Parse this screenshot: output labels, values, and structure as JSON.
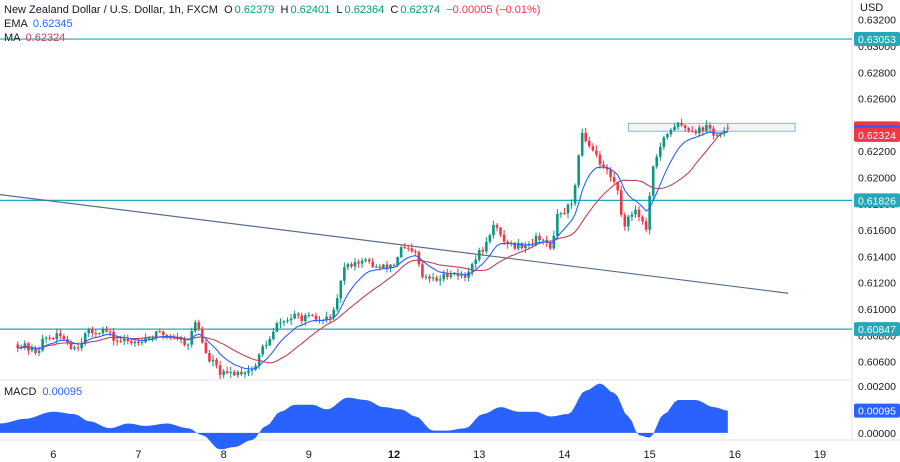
{
  "legend": {
    "title": "New Zealand Dollar / U.S. Dollar, 1h, FXCM",
    "o_label": "O",
    "o_value": "0.62379",
    "h_label": "H",
    "h_value": "0.62401",
    "l_label": "L",
    "l_value": "0.62364",
    "c_label": "C",
    "c_value": "0.62374",
    "change": "−0.00005 (−0.01%)",
    "ema_label": "EMA",
    "ema_value": "0.62345",
    "ma_label": "MA",
    "ma_value": "0.62324"
  },
  "macd": {
    "label": "MACD",
    "value": "0.00095"
  },
  "colors": {
    "up": "#089981",
    "down": "#f23645",
    "ema": "#2962ff",
    "ma": "#c2415c",
    "hline": "#22a8b8",
    "trendline": "#5b6f8c",
    "macd_fill": "#2962ff",
    "resistance_box": "#8fb0d8"
  },
  "chart_data": [
    {
      "type": "candlestick",
      "title": "New Zealand Dollar / U.S. Dollar, 1h, FXCM",
      "y_unit": "USD",
      "ylim": [
        0.6046,
        0.6335
      ],
      "y_ticks": [
        "0.63200",
        "0.63000",
        "0.62800",
        "0.62600",
        "0.62400",
        "0.62200",
        "0.62000",
        "0.61800",
        "0.61600",
        "0.61400",
        "0.61200",
        "0.61000",
        "0.60800",
        "0.60600"
      ],
      "x_ticks": [
        {
          "label": "6",
          "t": 10
        },
        {
          "label": "7",
          "t": 34
        },
        {
          "label": "8",
          "t": 58
        },
        {
          "label": "9",
          "t": 82
        },
        {
          "label": "12",
          "t": 106
        },
        {
          "label": "13",
          "t": 130
        },
        {
          "label": "14",
          "t": 154
        },
        {
          "label": "15",
          "t": 178
        },
        {
          "label": "16",
          "t": 202
        },
        {
          "label": "19",
          "t": 226
        }
      ],
      "x_range": [
        -5,
        235
      ],
      "price_labels": [
        {
          "text": "0.63053",
          "value": 0.63053,
          "color": "#22a8b8"
        },
        {
          "text": "0.62374",
          "value": 0.62374,
          "color": "#f23645"
        },
        {
          "text": "0.62345",
          "value": 0.62345,
          "color": "#2962ff"
        },
        {
          "text": "0.62324",
          "value": 0.62324,
          "color": "#f23645"
        },
        {
          "text": "0.61826",
          "value": 0.61826,
          "color": "#22a8b8"
        },
        {
          "text": "0.60847",
          "value": 0.60847,
          "color": "#22a8b8"
        }
      ],
      "horizontal_lines": [
        0.63053,
        0.61826,
        0.60847
      ],
      "trendline": {
        "t1": -5,
        "y1": 0.6187,
        "t2": 217,
        "y2": 0.6112
      },
      "resistance_zone": {
        "t1": 172,
        "t2": 219,
        "y_top": 0.62412,
        "y_bottom": 0.62352
      },
      "anchors": [
        {
          "t": 0,
          "y": 0.6073
        },
        {
          "t": 5,
          "y": 0.6068
        },
        {
          "t": 8,
          "y": 0.6078
        },
        {
          "t": 12,
          "y": 0.6079
        },
        {
          "t": 16,
          "y": 0.6071
        },
        {
          "t": 20,
          "y": 0.6082
        },
        {
          "t": 24,
          "y": 0.6084
        },
        {
          "t": 28,
          "y": 0.6076
        },
        {
          "t": 32,
          "y": 0.6075
        },
        {
          "t": 36,
          "y": 0.6078
        },
        {
          "t": 40,
          "y": 0.6081
        },
        {
          "t": 44,
          "y": 0.6079
        },
        {
          "t": 48,
          "y": 0.6074
        },
        {
          "t": 50,
          "y": 0.609
        },
        {
          "t": 54,
          "y": 0.6061
        },
        {
          "t": 58,
          "y": 0.605
        },
        {
          "t": 62,
          "y": 0.6052
        },
        {
          "t": 66,
          "y": 0.6054
        },
        {
          "t": 70,
          "y": 0.6074
        },
        {
          "t": 74,
          "y": 0.609
        },
        {
          "t": 78,
          "y": 0.6094
        },
        {
          "t": 82,
          "y": 0.6093
        },
        {
          "t": 86,
          "y": 0.6091
        },
        {
          "t": 89,
          "y": 0.6097
        },
        {
          "t": 92,
          "y": 0.6131
        },
        {
          "t": 95,
          "y": 0.6136
        },
        {
          "t": 98,
          "y": 0.6136
        },
        {
          "t": 102,
          "y": 0.6131
        },
        {
          "t": 106,
          "y": 0.6134
        },
        {
          "t": 108,
          "y": 0.6146
        },
        {
          "t": 112,
          "y": 0.6142
        },
        {
          "t": 114,
          "y": 0.6124
        },
        {
          "t": 118,
          "y": 0.6122
        },
        {
          "t": 122,
          "y": 0.6128
        },
        {
          "t": 126,
          "y": 0.6124
        },
        {
          "t": 128,
          "y": 0.6136
        },
        {
          "t": 131,
          "y": 0.6145
        },
        {
          "t": 134,
          "y": 0.6163
        },
        {
          "t": 137,
          "y": 0.6152
        },
        {
          "t": 140,
          "y": 0.6148
        },
        {
          "t": 144,
          "y": 0.615
        },
        {
          "t": 147,
          "y": 0.6155
        },
        {
          "t": 150,
          "y": 0.6146
        },
        {
          "t": 152,
          "y": 0.617
        },
        {
          "t": 156,
          "y": 0.6178
        },
        {
          "t": 159,
          "y": 0.6232
        },
        {
          "t": 162,
          "y": 0.6222
        },
        {
          "t": 165,
          "y": 0.6208
        },
        {
          "t": 168,
          "y": 0.6197
        },
        {
          "t": 171,
          "y": 0.6165
        },
        {
          "t": 174,
          "y": 0.6176
        },
        {
          "t": 177,
          "y": 0.6162
        },
        {
          "t": 179,
          "y": 0.621
        },
        {
          "t": 182,
          "y": 0.6228
        },
        {
          "t": 185,
          "y": 0.624
        },
        {
          "t": 188,
          "y": 0.6238
        },
        {
          "t": 191,
          "y": 0.6236
        },
        {
          "t": 194,
          "y": 0.6238
        },
        {
          "t": 197,
          "y": 0.6232
        },
        {
          "t": 200,
          "y": 0.6234
        }
      ],
      "macd": {
        "ylim": [
          -0.0003,
          0.00225
        ],
        "y_ticks": [
          "0.00200",
          "0.00100",
          "0.00000"
        ],
        "anchors": [
          {
            "t": -5,
            "y": 0.0004
          },
          {
            "t": 2,
            "y": 0.0006
          },
          {
            "t": 10,
            "y": 0.0009
          },
          {
            "t": 16,
            "y": 0.0008
          },
          {
            "t": 20,
            "y": 0.0005
          },
          {
            "t": 26,
            "y": 0.0002
          },
          {
            "t": 31,
            "y": 0.0004
          },
          {
            "t": 36,
            "y": 0.0003
          },
          {
            "t": 42,
            "y": 0.0004
          },
          {
            "t": 48,
            "y": 0.0002
          },
          {
            "t": 52,
            "y": -0.0001
          },
          {
            "t": 57,
            "y": -0.0007
          },
          {
            "t": 61,
            "y": -0.0006
          },
          {
            "t": 66,
            "y": -0.0003
          },
          {
            "t": 70,
            "y": 0.0003
          },
          {
            "t": 74,
            "y": 0.0009
          },
          {
            "t": 78,
            "y": 0.0012
          },
          {
            "t": 83,
            "y": 0.0012
          },
          {
            "t": 87,
            "y": 0.001
          },
          {
            "t": 93,
            "y": 0.0015
          },
          {
            "t": 98,
            "y": 0.0014
          },
          {
            "t": 103,
            "y": 0.0011
          },
          {
            "t": 108,
            "y": 0.001
          },
          {
            "t": 112,
            "y": 0.0007
          },
          {
            "t": 117,
            "y": 0.0001
          },
          {
            "t": 121,
            "y": 0.0001
          },
          {
            "t": 126,
            "y": 0.0002
          },
          {
            "t": 131,
            "y": 0.0008
          },
          {
            "t": 136,
            "y": 0.0011
          },
          {
            "t": 141,
            "y": 0.0009
          },
          {
            "t": 146,
            "y": 0.0009
          },
          {
            "t": 150,
            "y": 0.0007
          },
          {
            "t": 155,
            "y": 0.0008
          },
          {
            "t": 160,
            "y": 0.0018
          },
          {
            "t": 164,
            "y": 0.0021
          },
          {
            "t": 168,
            "y": 0.0017
          },
          {
            "t": 172,
            "y": 0.0007
          },
          {
            "t": 175,
            "y": -0.0001
          },
          {
            "t": 178,
            "y": -0.0002
          },
          {
            "t": 182,
            "y": 0.0008
          },
          {
            "t": 186,
            "y": 0.0014
          },
          {
            "t": 191,
            "y": 0.0014
          },
          {
            "t": 196,
            "y": 0.0011
          },
          {
            "t": 200,
            "y": 0.00095
          }
        ]
      }
    }
  ]
}
